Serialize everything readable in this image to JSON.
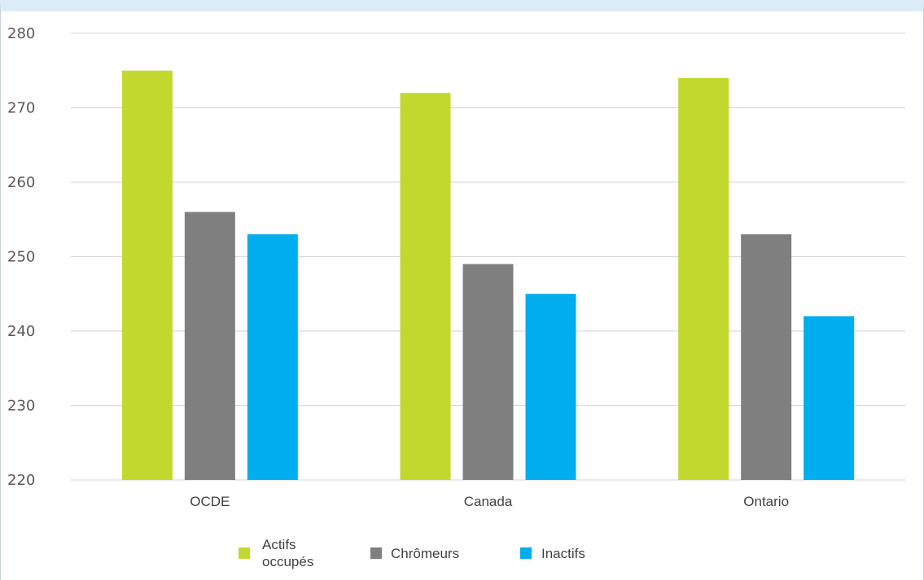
{
  "chart_data": {
    "type": "bar",
    "categories": [
      "OCDE",
      "Canada",
      "Ontario"
    ],
    "series": [
      {
        "name": "Actifs occupés",
        "values": [
          275,
          272,
          274
        ],
        "color": "#c3d82e"
      },
      {
        "name": "Chrômeurs",
        "values": [
          256,
          249,
          253
        ],
        "color": "#7f7f7f"
      },
      {
        "name": "Inactifs",
        "values": [
          253,
          245,
          242
        ],
        "color": "#00aeef"
      }
    ],
    "ylim": [
      220,
      280
    ],
    "yticks": [
      220,
      230,
      240,
      250,
      260,
      270,
      280
    ],
    "grid": true,
    "legend_position": "bottom",
    "title": "",
    "xlabel": "",
    "ylabel": ""
  }
}
